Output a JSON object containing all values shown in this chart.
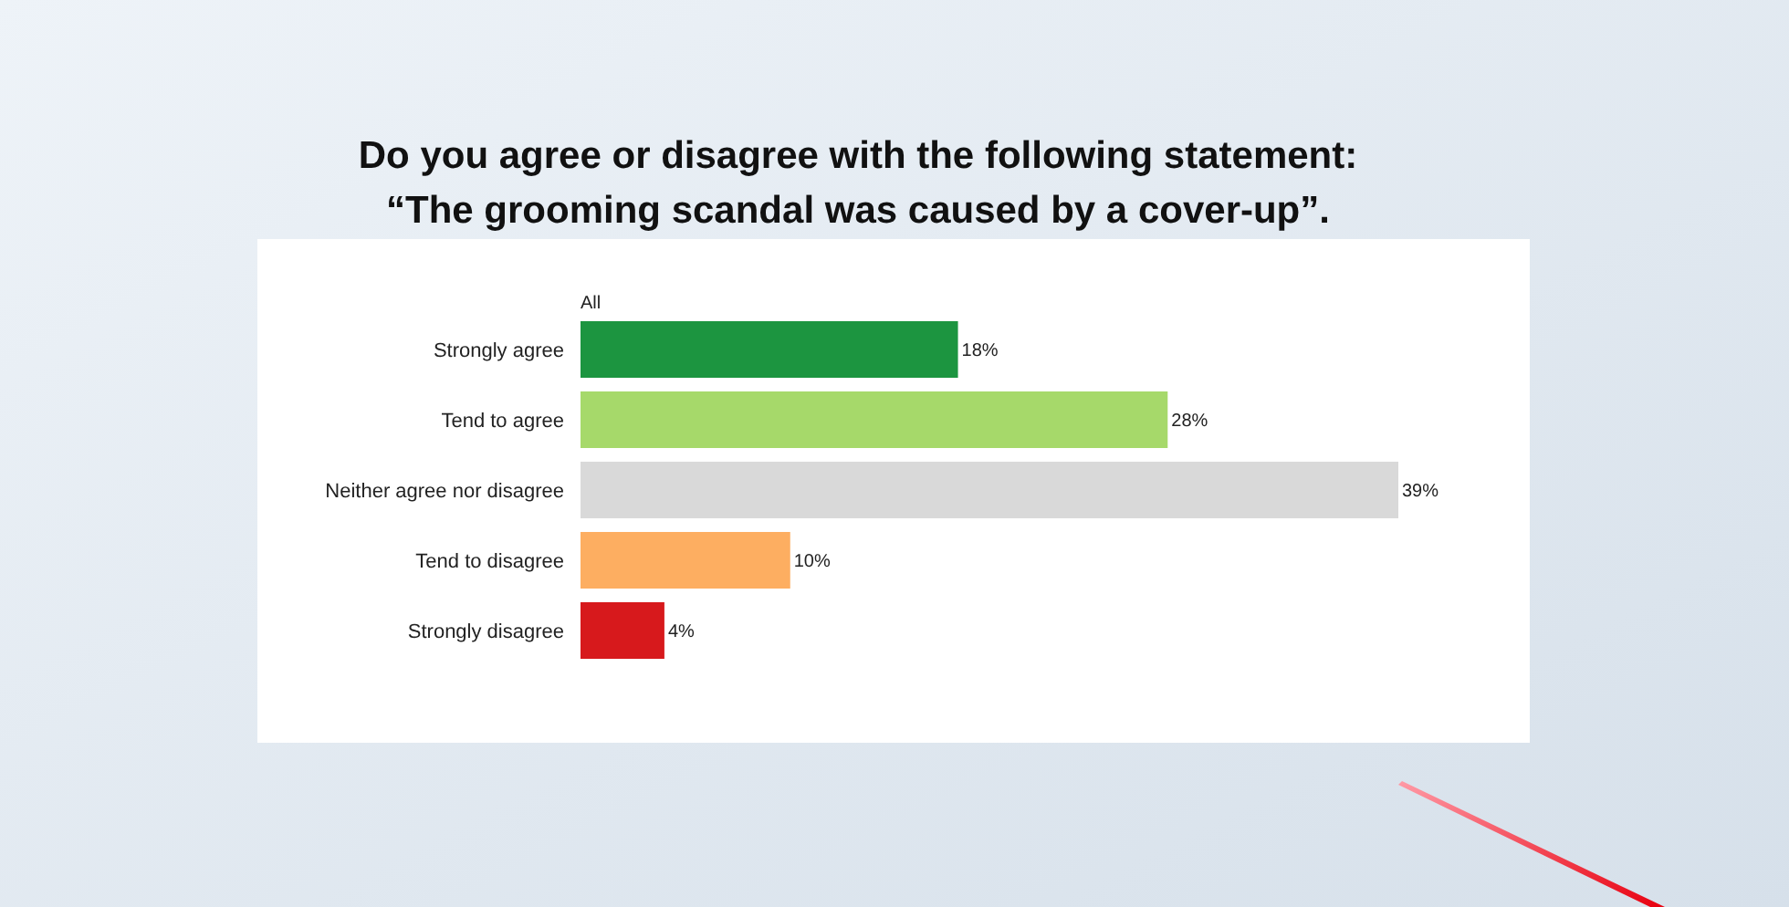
{
  "chart_data": {
    "type": "bar",
    "orientation": "horizontal",
    "title": "Do you agree or disagree with the following statement:\n“The grooming scandal was caused by a cover-up”.",
    "categories": [
      "Strongly agree",
      "Tend to agree",
      "Neither agree nor disagree",
      "Tend to disagree",
      "Strongly disagree"
    ],
    "series": [
      {
        "name": "All",
        "values": [
          18,
          28,
          39,
          10,
          4
        ],
        "colors": [
          "#1c9540",
          "#a6d96a",
          "#d9d9d9",
          "#fdae61",
          "#d7191c"
        ],
        "value_labels": [
          "18%",
          "28%",
          "39%",
          "10%",
          "4%"
        ]
      }
    ],
    "legend": false
  }
}
